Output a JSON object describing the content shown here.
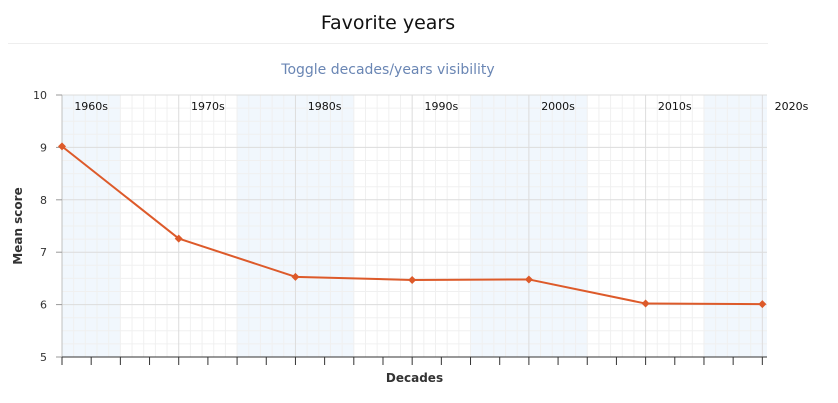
{
  "header": {
    "title": "Favorite years",
    "toggle_label": "Toggle decades/years visibility"
  },
  "colors": {
    "line": "#dd5a2a",
    "band": "#f1f7fd",
    "grid_major": "#dcdcdc",
    "grid_minor": "#f0f0f0",
    "axis": "#333333",
    "link": "#6a86b4"
  },
  "chart_data": {
    "type": "line",
    "title": "Favorite years",
    "xlabel": "Decades",
    "ylabel": "Mean score",
    "categories": [
      "1960s",
      "1970s",
      "1980s",
      "1990s",
      "2000s",
      "2010s",
      "2020s"
    ],
    "x": [
      1960,
      1970,
      1980,
      1990,
      2000,
      2010,
      2020
    ],
    "xlim": [
      1960,
      2020.4
    ],
    "ylim": [
      5,
      10
    ],
    "y_ticks": [
      5,
      6,
      7,
      8,
      9,
      10
    ],
    "shaded_decades": [
      "1960s",
      "1980s",
      "2000s",
      "2020s"
    ],
    "grid": true,
    "series": [
      {
        "values": [
          9.02,
          7.26,
          6.53,
          6.47,
          6.48,
          6.02,
          6.01
        ]
      }
    ]
  }
}
